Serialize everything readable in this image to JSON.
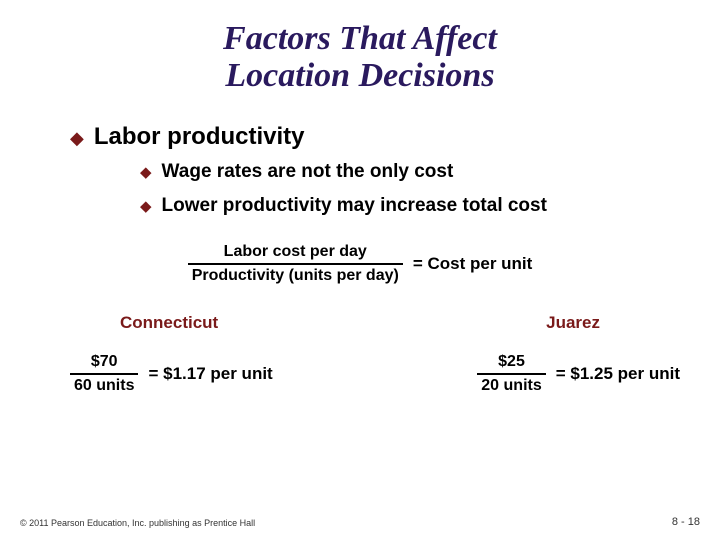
{
  "title_line1": "Factors That Affect",
  "title_line2": "Location Decisions",
  "lvl1": {
    "bullet": "◆",
    "text": "Labor productivity"
  },
  "lvl2a": {
    "bullet": "◆",
    "text": "Wage rates are not the only cost"
  },
  "lvl2b": {
    "bullet": "◆",
    "text": "Lower productivity may increase total cost"
  },
  "main_formula": {
    "numerator": "Labor cost per day",
    "denominator": "Productivity (units per day)",
    "result": "= Cost per unit"
  },
  "city_a": "Connecticut",
  "city_b": "Juarez",
  "calc_a": {
    "num": "$70",
    "den": "60 units",
    "result": "= $1.17 per unit"
  },
  "calc_b": {
    "num": "$25",
    "den": "20 units",
    "result": "= $1.25 per unit"
  },
  "footer_left": "© 2011 Pearson Education, Inc. publishing as Prentice Hall",
  "footer_right": "8 - 18",
  "colors": {
    "title": "#2a1a5e",
    "bullet": "#7a1a1a",
    "city": "#7a1a1a",
    "text": "#000000",
    "background": "#ffffff"
  }
}
